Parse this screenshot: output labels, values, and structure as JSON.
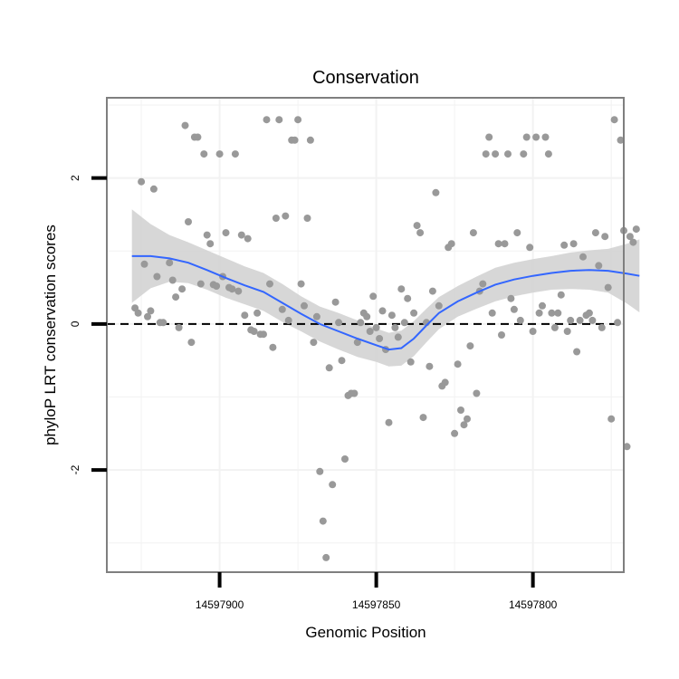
{
  "chart_data": {
    "type": "scatter",
    "title": "Conservation",
    "xlabel": "Genomic Position",
    "ylabel": "phyloP LRT conservation scores",
    "x_reversed": true,
    "xlim": [
      14597936,
      14597771
    ],
    "ylim": [
      -3.4,
      3.1
    ],
    "xticks": [
      {
        "value": 14597900,
        "label": "14597900"
      },
      {
        "value": 14597850,
        "label": "14597850"
      },
      {
        "value": 14597800,
        "label": "14597800"
      }
    ],
    "yticks": [
      {
        "value": 2,
        "label": "2"
      },
      {
        "value": 0,
        "label": "0"
      },
      {
        "value": -2,
        "label": "-2"
      }
    ],
    "grid": true,
    "reference_line": {
      "y": 0,
      "style": "dashed",
      "color": "#000000"
    },
    "colors": {
      "points": "#999999",
      "smooth": "#3366ff",
      "band": "#d3d3d3",
      "grid": "#f2f2f2",
      "frame": "#7f7f7f"
    },
    "points": [
      [
        14597927,
        0.22
      ],
      [
        14597926,
        0.15
      ],
      [
        14597925,
        1.95
      ],
      [
        14597924,
        0.82
      ],
      [
        14597923,
        0.1
      ],
      [
        14597922,
        0.18
      ],
      [
        14597921,
        1.85
      ],
      [
        14597920,
        0.65
      ],
      [
        14597919,
        0.02
      ],
      [
        14597918,
        0.02
      ],
      [
        14597916,
        0.84
      ],
      [
        14597915,
        0.6
      ],
      [
        14597914,
        0.37
      ],
      [
        14597913,
        -0.05
      ],
      [
        14597912,
        0.48
      ],
      [
        14597911,
        2.72
      ],
      [
        14597910,
        1.4
      ],
      [
        14597909,
        -0.25
      ],
      [
        14597908,
        2.56
      ],
      [
        14597907,
        2.56
      ],
      [
        14597906,
        0.55
      ],
      [
        14597905,
        2.33
      ],
      [
        14597904,
        1.22
      ],
      [
        14597903,
        1.1
      ],
      [
        14597902,
        0.54
      ],
      [
        14597901,
        0.52
      ],
      [
        14597900,
        2.33
      ],
      [
        14597899,
        0.65
      ],
      [
        14597898,
        1.25
      ],
      [
        14597897,
        0.5
      ],
      [
        14597896,
        0.48
      ],
      [
        14597895,
        2.33
      ],
      [
        14597894,
        0.45
      ],
      [
        14597893,
        1.22
      ],
      [
        14597892,
        0.12
      ],
      [
        14597891,
        1.17
      ],
      [
        14597890,
        -0.08
      ],
      [
        14597889,
        -0.1
      ],
      [
        14597888,
        0.15
      ],
      [
        14597887,
        -0.14
      ],
      [
        14597886,
        -0.14
      ],
      [
        14597885,
        2.8
      ],
      [
        14597884,
        0.55
      ],
      [
        14597883,
        -0.32
      ],
      [
        14597882,
        1.45
      ],
      [
        14597881,
        2.8
      ],
      [
        14597880,
        0.2
      ],
      [
        14597879,
        1.48
      ],
      [
        14597878,
        0.05
      ],
      [
        14597877,
        2.52
      ],
      [
        14597876,
        2.52
      ],
      [
        14597875,
        2.8
      ],
      [
        14597874,
        0.55
      ],
      [
        14597873,
        0.25
      ],
      [
        14597872,
        1.45
      ],
      [
        14597871,
        2.52
      ],
      [
        14597870,
        -0.25
      ],
      [
        14597869,
        0.1
      ],
      [
        14597868,
        -2.02
      ],
      [
        14597867,
        -2.7
      ],
      [
        14597866,
        -3.2
      ],
      [
        14597865,
        -0.6
      ],
      [
        14597864,
        -2.2
      ],
      [
        14597863,
        0.3
      ],
      [
        14597862,
        0.02
      ],
      [
        14597861,
        -0.5
      ],
      [
        14597860,
        -1.85
      ],
      [
        14597859,
        -0.98
      ],
      [
        14597858,
        -0.95
      ],
      [
        14597857,
        -0.95
      ],
      [
        14597856,
        -0.25
      ],
      [
        14597855,
        0.02
      ],
      [
        14597854,
        0.15
      ],
      [
        14597853,
        0.1
      ],
      [
        14597852,
        -0.1
      ],
      [
        14597851,
        0.38
      ],
      [
        14597850,
        -0.05
      ],
      [
        14597849,
        -0.2
      ],
      [
        14597848,
        0.18
      ],
      [
        14597847,
        -0.35
      ],
      [
        14597846,
        -1.35
      ],
      [
        14597845,
        0.12
      ],
      [
        14597844,
        -0.05
      ],
      [
        14597843,
        -0.18
      ],
      [
        14597842,
        0.48
      ],
      [
        14597841,
        0.02
      ],
      [
        14597840,
        0.35
      ],
      [
        14597839,
        -0.52
      ],
      [
        14597838,
        0.15
      ],
      [
        14597837,
        1.35
      ],
      [
        14597836,
        1.25
      ],
      [
        14597835,
        -1.28
      ],
      [
        14597834,
        0.02
      ],
      [
        14597833,
        -0.58
      ],
      [
        14597832,
        0.45
      ],
      [
        14597831,
        1.8
      ],
      [
        14597830,
        0.25
      ],
      [
        14597829,
        -0.85
      ],
      [
        14597828,
        -0.8
      ],
      [
        14597827,
        1.05
      ],
      [
        14597826,
        1.1
      ],
      [
        14597825,
        -1.5
      ],
      [
        14597824,
        -0.55
      ],
      [
        14597823,
        -1.18
      ],
      [
        14597822,
        -1.38
      ],
      [
        14597821,
        -1.3
      ],
      [
        14597820,
        -0.3
      ],
      [
        14597819,
        1.25
      ],
      [
        14597818,
        -0.95
      ],
      [
        14597817,
        0.45
      ],
      [
        14597816,
        0.55
      ],
      [
        14597815,
        2.33
      ],
      [
        14597814,
        2.56
      ],
      [
        14597813,
        0.15
      ],
      [
        14597812,
        2.33
      ],
      [
        14597811,
        1.1
      ],
      [
        14597810,
        -0.15
      ],
      [
        14597809,
        1.1
      ],
      [
        14597808,
        2.33
      ],
      [
        14597807,
        0.35
      ],
      [
        14597806,
        0.2
      ],
      [
        14597805,
        1.25
      ],
      [
        14597804,
        0.05
      ],
      [
        14597803,
        2.33
      ],
      [
        14597802,
        2.56
      ],
      [
        14597801,
        1.05
      ],
      [
        14597800,
        -0.1
      ],
      [
        14597799,
        2.56
      ],
      [
        14597798,
        0.15
      ],
      [
        14597797,
        0.25
      ],
      [
        14597796,
        2.56
      ],
      [
        14597795,
        2.33
      ],
      [
        14597794,
        0.15
      ],
      [
        14597793,
        -0.05
      ],
      [
        14597792,
        0.15
      ],
      [
        14597791,
        0.4
      ],
      [
        14597790,
        1.08
      ],
      [
        14597789,
        -0.1
      ],
      [
        14597788,
        0.05
      ],
      [
        14597787,
        1.1
      ],
      [
        14597786,
        -0.38
      ],
      [
        14597785,
        0.05
      ],
      [
        14597784,
        0.92
      ],
      [
        14597783,
        0.12
      ],
      [
        14597782,
        0.15
      ],
      [
        14597781,
        0.05
      ],
      [
        14597780,
        1.25
      ],
      [
        14597779,
        0.8
      ],
      [
        14597778,
        -0.05
      ],
      [
        14597777,
        1.2
      ],
      [
        14597776,
        0.5
      ],
      [
        14597775,
        -1.3
      ],
      [
        14597774,
        2.8
      ],
      [
        14597773,
        0.02
      ],
      [
        14597772,
        2.52
      ],
      [
        14597771,
        1.28
      ],
      [
        14597770,
        -1.68
      ],
      [
        14597769,
        1.2
      ],
      [
        14597768,
        1.12
      ],
      [
        14597767,
        1.3
      ]
    ],
    "smooth": [
      [
        14597928,
        0.93
      ],
      [
        14597922,
        0.93
      ],
      [
        14597916,
        0.9
      ],
      [
        14597910,
        0.84
      ],
      [
        14597904,
        0.74
      ],
      [
        14597898,
        0.63
      ],
      [
        14597892,
        0.53
      ],
      [
        14597886,
        0.44
      ],
      [
        14597880,
        0.29
      ],
      [
        14597874,
        0.14
      ],
      [
        14597868,
        0.0
      ],
      [
        14597862,
        -0.1
      ],
      [
        14597856,
        -0.2
      ],
      [
        14597850,
        -0.29
      ],
      [
        14597846,
        -0.35
      ],
      [
        14597842,
        -0.33
      ],
      [
        14597838,
        -0.2
      ],
      [
        14597834,
        -0.02
      ],
      [
        14597830,
        0.15
      ],
      [
        14597824,
        0.31
      ],
      [
        14597818,
        0.43
      ],
      [
        14597812,
        0.54
      ],
      [
        14597806,
        0.61
      ],
      [
        14597800,
        0.66
      ],
      [
        14597794,
        0.7
      ],
      [
        14597788,
        0.73
      ],
      [
        14597782,
        0.74
      ],
      [
        14597776,
        0.73
      ],
      [
        14597770,
        0.69
      ],
      [
        14597766,
        0.66
      ]
    ],
    "band_upper": [
      [
        14597928,
        1.57
      ],
      [
        14597922,
        1.37
      ],
      [
        14597916,
        1.22
      ],
      [
        14597910,
        1.12
      ],
      [
        14597904,
        1.01
      ],
      [
        14597898,
        0.9
      ],
      [
        14597892,
        0.79
      ],
      [
        14597886,
        0.7
      ],
      [
        14597880,
        0.55
      ],
      [
        14597874,
        0.38
      ],
      [
        14597868,
        0.24
      ],
      [
        14597862,
        0.15
      ],
      [
        14597856,
        0.05
      ],
      [
        14597850,
        -0.06
      ],
      [
        14597846,
        -0.12
      ],
      [
        14597842,
        -0.09
      ],
      [
        14597838,
        0.04
      ],
      [
        14597834,
        0.21
      ],
      [
        14597830,
        0.37
      ],
      [
        14597824,
        0.52
      ],
      [
        14597818,
        0.65
      ],
      [
        14597812,
        0.77
      ],
      [
        14597806,
        0.84
      ],
      [
        14597800,
        0.89
      ],
      [
        14597794,
        0.93
      ],
      [
        14597788,
        0.98
      ],
      [
        14597782,
        1.01
      ],
      [
        14597776,
        1.03
      ],
      [
        14597770,
        1.1
      ],
      [
        14597766,
        1.16
      ]
    ],
    "band_lower": [
      [
        14597928,
        0.29
      ],
      [
        14597922,
        0.49
      ],
      [
        14597916,
        0.58
      ],
      [
        14597910,
        0.56
      ],
      [
        14597904,
        0.47
      ],
      [
        14597898,
        0.36
      ],
      [
        14597892,
        0.27
      ],
      [
        14597886,
        0.18
      ],
      [
        14597880,
        0.03
      ],
      [
        14597874,
        -0.1
      ],
      [
        14597868,
        -0.24
      ],
      [
        14597862,
        -0.35
      ],
      [
        14597856,
        -0.45
      ],
      [
        14597850,
        -0.52
      ],
      [
        14597846,
        -0.58
      ],
      [
        14597842,
        -0.57
      ],
      [
        14597838,
        -0.44
      ],
      [
        14597834,
        -0.25
      ],
      [
        14597830,
        -0.07
      ],
      [
        14597824,
        0.1
      ],
      [
        14597818,
        0.21
      ],
      [
        14597812,
        0.31
      ],
      [
        14597806,
        0.38
      ],
      [
        14597800,
        0.43
      ],
      [
        14597794,
        0.47
      ],
      [
        14597788,
        0.48
      ],
      [
        14597782,
        0.47
      ],
      [
        14597776,
        0.43
      ],
      [
        14597770,
        0.28
      ],
      [
        14597766,
        0.16
      ]
    ]
  }
}
